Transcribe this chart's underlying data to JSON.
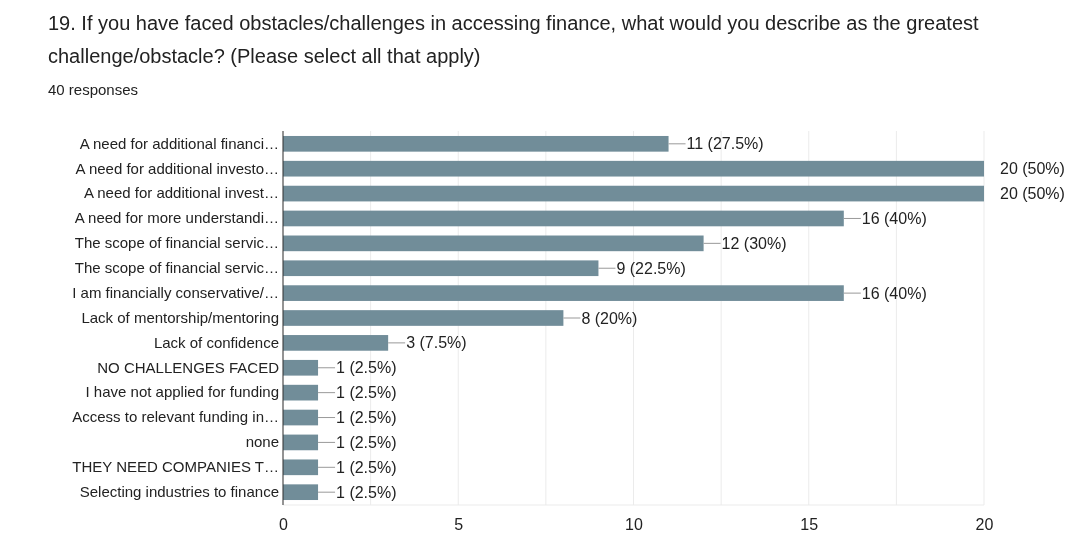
{
  "chart_data": {
    "type": "bar",
    "orientation": "horizontal",
    "title": "19. If you have faced obstacles/challenges in accessing finance, what would you describe as the greatest challenge/obstacle? (Please select all that apply)",
    "subtitle": "40 responses",
    "categories": [
      "A need for additional financi…",
      "A need for additional investo…",
      "A need for additional invest…",
      "A need for more understandi…",
      "The scope of financial servic…",
      "The scope of financial servic…",
      "I am financially conservative/…",
      "Lack of mentorship/mentoring",
      "Lack of confidence",
      "NO CHALLENGES FACED",
      "I have not applied for funding",
      "Access to relevant funding in…",
      "none",
      "THEY NEED COMPANIES T…",
      "Selecting industries to finance"
    ],
    "values": [
      11,
      20,
      20,
      16,
      12,
      9,
      16,
      8,
      3,
      1,
      1,
      1,
      1,
      1,
      1
    ],
    "value_labels": [
      "11 (27.5%)",
      "20 (50%)",
      "20 (50%)",
      "16 (40%)",
      "12 (30%)",
      "9 (22.5%)",
      "16 (40%)",
      "8 (20%)",
      "3 (7.5%)",
      "1 (2.5%)",
      "1 (2.5%)",
      "1 (2.5%)",
      "1 (2.5%)",
      "1 (2.5%)",
      "1 (2.5%)"
    ],
    "color": "#718d99",
    "xlim": [
      0,
      20
    ],
    "xticks": [
      0,
      {
        "value": 2.5,
        "label": null
      },
      5,
      {
        "value": 7.5,
        "label": null
      },
      10,
      {
        "value": 12.5,
        "label": null
      },
      15,
      {
        "value": 17.5,
        "label": null
      },
      20
    ],
    "grid": "x"
  }
}
